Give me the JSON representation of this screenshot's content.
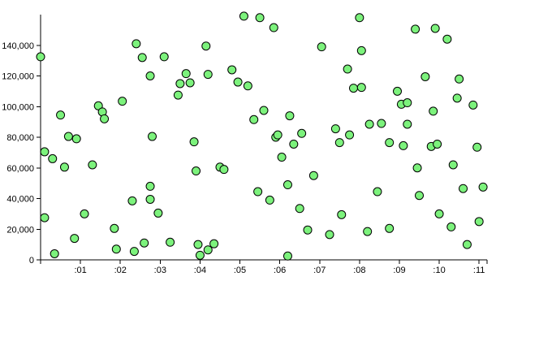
{
  "chart_data": {
    "type": "scatter",
    "title": "",
    "xlabel": "",
    "ylabel": "",
    "grid": false,
    "legend": "none",
    "x_unit": "minutes",
    "xlim": [
      0,
      11.2
    ],
    "ylim": [
      0,
      160000
    ],
    "x_ticks": [
      {
        "value": 1,
        "label": ":01"
      },
      {
        "value": 2,
        "label": ":02"
      },
      {
        "value": 3,
        "label": ":03"
      },
      {
        "value": 4,
        "label": ":04"
      },
      {
        "value": 5,
        "label": ":05"
      },
      {
        "value": 6,
        "label": ":06"
      },
      {
        "value": 7,
        "label": ":07"
      },
      {
        "value": 8,
        "label": ":08"
      },
      {
        "value": 9,
        "label": ":09"
      },
      {
        "value": 10,
        "label": ":10"
      },
      {
        "value": 11,
        "label": ":11"
      }
    ],
    "y_ticks": [
      {
        "value": 0,
        "label": "0"
      },
      {
        "value": 20000,
        "label": "20,000"
      },
      {
        "value": 40000,
        "label": "40,000"
      },
      {
        "value": 60000,
        "label": "60,000"
      },
      {
        "value": 80000,
        "label": "80,000"
      },
      {
        "value": 100000,
        "label": "100,000"
      },
      {
        "value": 120000,
        "label": "120,000"
      },
      {
        "value": 140000,
        "label": "140,000"
      }
    ],
    "point_color": "#7cf27c",
    "point_stroke": "#000000",
    "series": [
      {
        "points": [
          [
            0.0,
            132500
          ],
          [
            0.1,
            70500
          ],
          [
            0.1,
            27500
          ],
          [
            0.3,
            66000
          ],
          [
            0.35,
            4000
          ],
          [
            0.5,
            94500
          ],
          [
            0.6,
            60500
          ],
          [
            0.7,
            80500
          ],
          [
            0.85,
            14000
          ],
          [
            0.9,
            79000
          ],
          [
            1.1,
            30000
          ],
          [
            1.3,
            62000
          ],
          [
            1.45,
            100500
          ],
          [
            1.55,
            96500
          ],
          [
            1.6,
            92000
          ],
          [
            1.85,
            20500
          ],
          [
            1.9,
            7000
          ],
          [
            2.05,
            103500
          ],
          [
            2.3,
            38500
          ],
          [
            2.35,
            5500
          ],
          [
            2.4,
            141000
          ],
          [
            2.55,
            132000
          ],
          [
            2.6,
            11000
          ],
          [
            2.75,
            120000
          ],
          [
            2.75,
            48000
          ],
          [
            2.75,
            39500
          ],
          [
            2.8,
            80500
          ],
          [
            2.95,
            30500
          ],
          [
            3.1,
            132500
          ],
          [
            3.25,
            11500
          ],
          [
            3.45,
            107500
          ],
          [
            3.5,
            115000
          ],
          [
            3.65,
            121500
          ],
          [
            3.75,
            115500
          ],
          [
            3.85,
            77000
          ],
          [
            3.9,
            58000
          ],
          [
            3.95,
            10000
          ],
          [
            4.0,
            3000
          ],
          [
            4.15,
            139500
          ],
          [
            4.2,
            121000
          ],
          [
            4.2,
            6500
          ],
          [
            4.35,
            10500
          ],
          [
            4.5,
            60500
          ],
          [
            4.6,
            59000
          ],
          [
            4.8,
            124000
          ],
          [
            4.95,
            116000
          ],
          [
            5.1,
            159000
          ],
          [
            5.2,
            113500
          ],
          [
            5.35,
            91500
          ],
          [
            5.45,
            44500
          ],
          [
            5.5,
            158000
          ],
          [
            5.6,
            97500
          ],
          [
            5.75,
            39000
          ],
          [
            5.85,
            151500
          ],
          [
            5.9,
            80000
          ],
          [
            5.95,
            81500
          ],
          [
            6.05,
            67000
          ],
          [
            6.2,
            49000
          ],
          [
            6.2,
            2500
          ],
          [
            6.25,
            94000
          ],
          [
            6.35,
            75500
          ],
          [
            6.5,
            33500
          ],
          [
            6.55,
            82500
          ],
          [
            6.7,
            19500
          ],
          [
            6.85,
            55000
          ],
          [
            7.05,
            139000
          ],
          [
            7.25,
            16500
          ],
          [
            7.4,
            85500
          ],
          [
            7.5,
            76500
          ],
          [
            7.55,
            29500
          ],
          [
            7.7,
            124500
          ],
          [
            7.75,
            81500
          ],
          [
            7.85,
            112000
          ],
          [
            8.0,
            158000
          ],
          [
            8.05,
            136500
          ],
          [
            8.05,
            112500
          ],
          [
            8.2,
            18500
          ],
          [
            8.25,
            88500
          ],
          [
            8.45,
            44500
          ],
          [
            8.55,
            89000
          ],
          [
            8.75,
            76500
          ],
          [
            8.75,
            20500
          ],
          [
            8.95,
            110000
          ],
          [
            9.05,
            101500
          ],
          [
            9.1,
            74500
          ],
          [
            9.2,
            102500
          ],
          [
            9.2,
            88500
          ],
          [
            9.4,
            150500
          ],
          [
            9.45,
            60000
          ],
          [
            9.5,
            42000
          ],
          [
            9.65,
            119500
          ],
          [
            9.8,
            74000
          ],
          [
            9.85,
            97000
          ],
          [
            9.9,
            151000
          ],
          [
            9.95,
            75500
          ],
          [
            10.0,
            30000
          ],
          [
            10.2,
            144000
          ],
          [
            10.3,
            21500
          ],
          [
            10.35,
            62000
          ],
          [
            10.45,
            105500
          ],
          [
            10.5,
            118000
          ],
          [
            10.6,
            46500
          ],
          [
            10.7,
            10000
          ],
          [
            10.85,
            101000
          ],
          [
            10.95,
            73500
          ],
          [
            11.0,
            25000
          ],
          [
            11.1,
            47500
          ]
        ]
      }
    ]
  }
}
